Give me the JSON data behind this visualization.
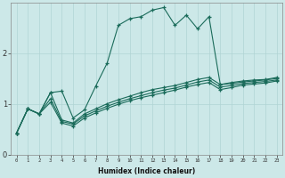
{
  "xlabel": "Humidex (Indice chaleur)",
  "background_color": "#cce8e8",
  "grid_color": "#b0d4d4",
  "line_color": "#1a6b5a",
  "xlim": [
    -0.5,
    23.5
  ],
  "ylim": [
    0,
    3.0
  ],
  "yticks": [
    0,
    1,
    2
  ],
  "xtick_labels": [
    "0",
    "1",
    "2",
    "3",
    "4",
    "5",
    "6",
    "7",
    "8",
    "9",
    "10",
    "11",
    "12",
    "13",
    "14",
    "15",
    "16",
    "17",
    "18",
    "19",
    "20",
    "21",
    "22",
    "23"
  ],
  "series1_x": [
    0,
    1,
    2,
    3,
    4,
    5,
    6,
    7,
    8,
    9,
    10,
    11,
    12,
    13,
    14,
    15,
    16,
    17,
    18,
    19,
    20,
    21,
    22,
    23
  ],
  "series1_y": [
    0.42,
    0.9,
    0.8,
    1.22,
    1.25,
    0.72,
    0.88,
    1.35,
    1.8,
    2.55,
    2.68,
    2.72,
    2.85,
    2.9,
    2.55,
    2.75,
    2.48,
    2.72,
    1.38,
    1.42,
    1.45,
    1.47,
    1.48,
    1.52
  ],
  "series2_x": [
    0,
    1,
    2,
    3,
    4,
    5,
    6,
    7,
    8,
    9,
    10,
    11,
    12,
    13,
    14,
    15,
    16,
    17,
    18,
    19,
    20,
    21,
    22,
    23
  ],
  "series2_y": [
    0.42,
    0.9,
    0.8,
    1.22,
    0.68,
    0.62,
    0.8,
    0.9,
    1.0,
    1.08,
    1.15,
    1.22,
    1.28,
    1.32,
    1.36,
    1.42,
    1.48,
    1.52,
    1.38,
    1.4,
    1.43,
    1.45,
    1.47,
    1.5
  ],
  "series3_x": [
    0,
    1,
    2,
    3,
    4,
    5,
    6,
    7,
    8,
    9,
    10,
    11,
    12,
    13,
    14,
    15,
    16,
    17,
    18,
    19,
    20,
    21,
    22,
    23
  ],
  "series3_y": [
    0.42,
    0.9,
    0.8,
    1.1,
    0.65,
    0.6,
    0.76,
    0.86,
    0.95,
    1.03,
    1.1,
    1.16,
    1.22,
    1.27,
    1.31,
    1.37,
    1.43,
    1.47,
    1.33,
    1.36,
    1.4,
    1.42,
    1.44,
    1.47
  ],
  "series4_x": [
    0,
    1,
    2,
    3,
    4,
    5,
    6,
    7,
    8,
    9,
    10,
    11,
    12,
    13,
    14,
    15,
    16,
    17,
    18,
    19,
    20,
    21,
    22,
    23
  ],
  "series4_y": [
    0.42,
    0.9,
    0.8,
    1.03,
    0.62,
    0.56,
    0.72,
    0.82,
    0.91,
    0.99,
    1.06,
    1.12,
    1.17,
    1.22,
    1.27,
    1.33,
    1.38,
    1.42,
    1.28,
    1.32,
    1.37,
    1.39,
    1.41,
    1.45
  ]
}
